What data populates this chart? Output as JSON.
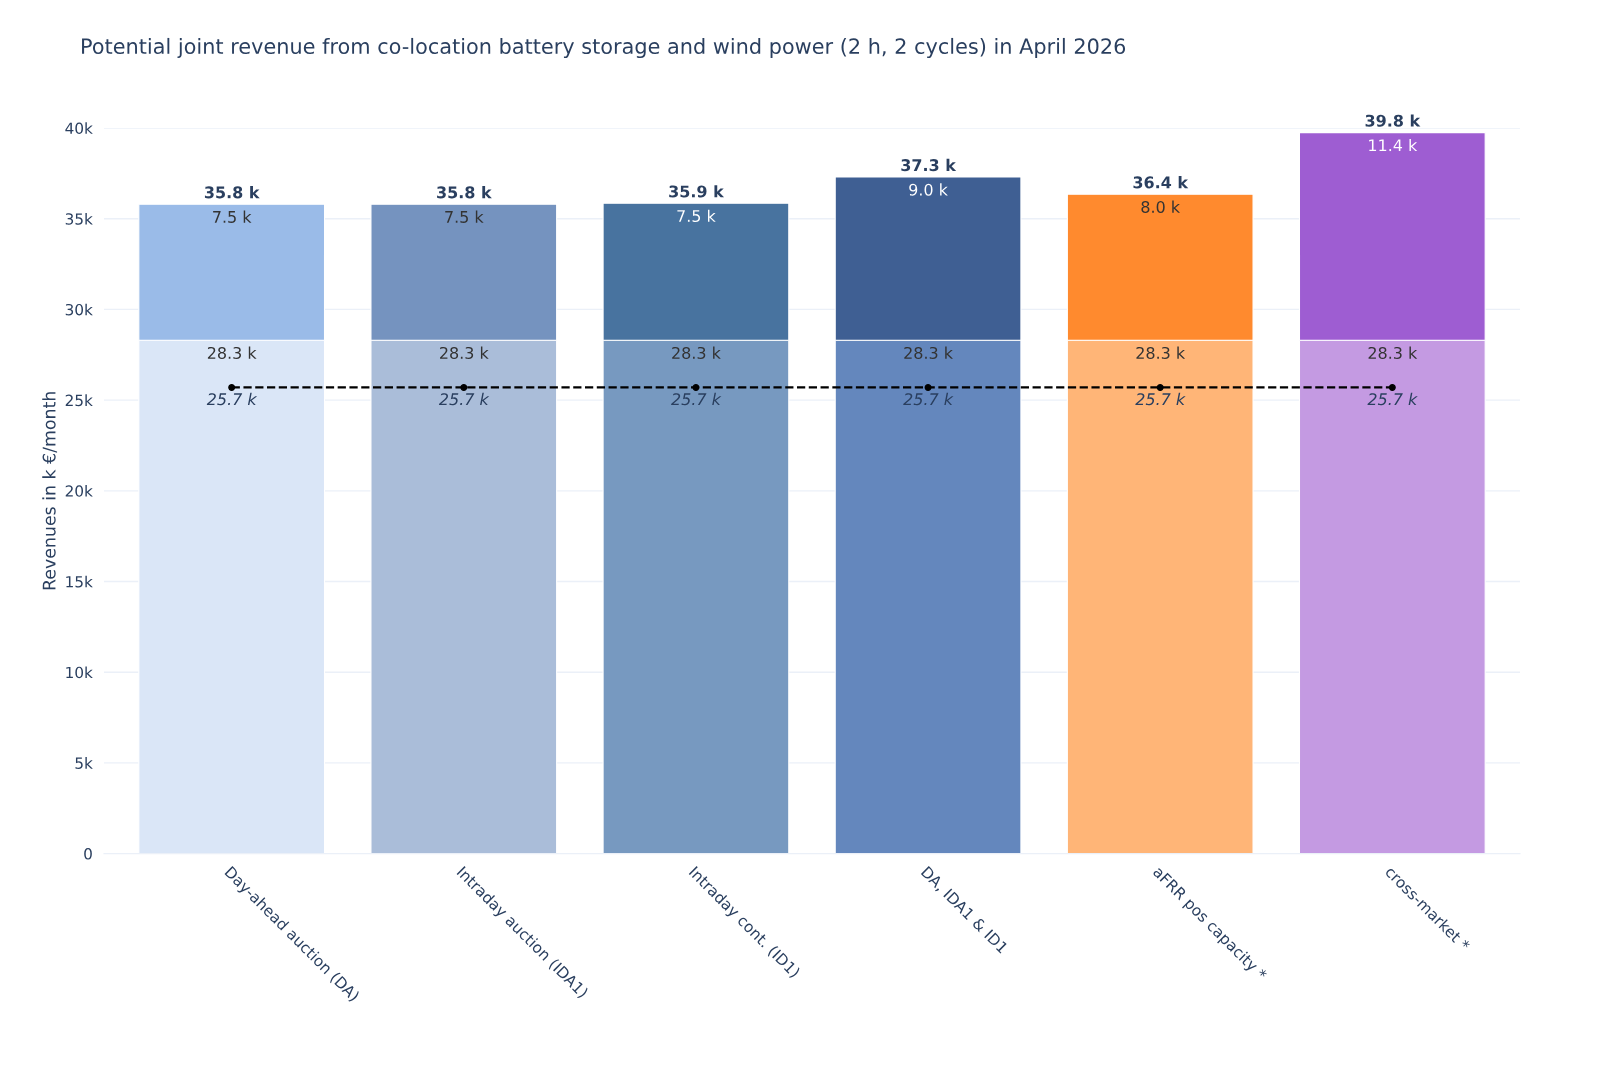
{
  "chart_data": {
    "type": "bar",
    "title": "Potential joint revenue from co-location battery storage and wind power (2 h, 2 cycles) in April 2026",
    "ylabel": "Revenues in k €/month",
    "categories": [
      "Day-ahead auction (DA)",
      "Intraday auction (IDA1)",
      "Intraday cont. (ID1)",
      "DA, IDA1 & ID1",
      "aFRR pos capacity *",
      "cross-market *"
    ],
    "stacked": true,
    "series": [
      {
        "colors": [
          "#dae6f7",
          "#aabdd9",
          "#7799c0",
          "#6487bd",
          "#ffb577",
          "#c49ae2"
        ],
        "values": [
          28300,
          28300,
          28300,
          28300,
          28300,
          28300
        ],
        "value_labels": [
          "28.3 k",
          "28.3 k",
          "28.3 k",
          "28.3 k",
          "28.3 k",
          "28.3 k"
        ]
      },
      {
        "colors": [
          "#9abbe8",
          "#7593bf",
          "#48739f",
          "#3f5f93",
          "#ff8a2e",
          "#9e5dd2"
        ],
        "values": [
          7500,
          7500,
          7550,
          9000,
          8050,
          11450
        ],
        "value_labels": [
          "7.5 k",
          "7.5 k",
          "7.5 k",
          "9.0 k",
          "8.0 k",
          "11.4 k"
        ]
      },
      {
        "type": "line",
        "color": "#000000",
        "line_style": "dashed",
        "marker": "circle",
        "values": [
          25700,
          25700,
          25700,
          25700,
          25700,
          25700
        ],
        "value_labels": [
          "25.7 k",
          "25.7 k",
          "25.7 k",
          "25.7 k",
          "25.7 k",
          "25.7 k"
        ]
      }
    ],
    "totals": [
      "35.8 k",
      "35.8 k",
      "35.9 k",
      "37.3 k",
      "36.4 k",
      "39.8 k"
    ],
    "ylim": [
      0,
      40000
    ],
    "yticks": [
      0,
      {
        "value": 5000,
        "label": "5k"
      },
      {
        "value": 10000,
        "label": "10k"
      },
      {
        "value": 15000,
        "label": "15k"
      },
      {
        "value": 20000,
        "label": "20k"
      },
      {
        "value": 25000,
        "label": "25k"
      },
      {
        "value": 30000,
        "label": "30k"
      },
      {
        "value": 35000,
        "label": "35k"
      },
      {
        "value": 40000,
        "label": "40k"
      }
    ],
    "grid": "y"
  }
}
